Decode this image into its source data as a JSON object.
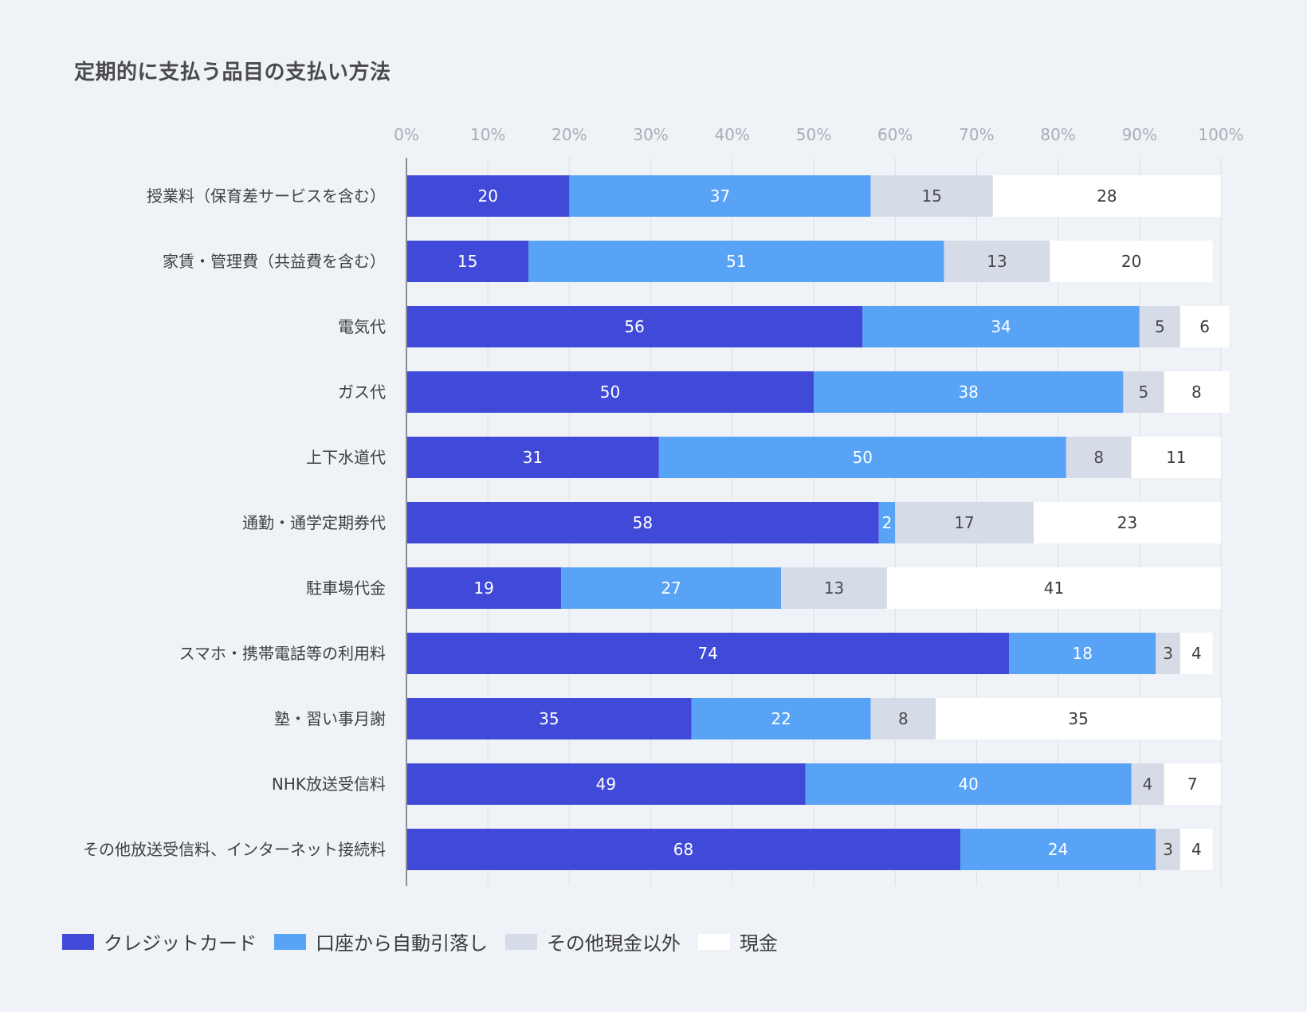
{
  "chart_data": {
    "type": "bar",
    "orientation": "horizontal",
    "stacked": true,
    "title": "定期的に支払う品目の支払い方法",
    "x_ticks": [
      "0%",
      "10%",
      "20%",
      "30%",
      "40%",
      "50%",
      "60%",
      "70%",
      "80%",
      "90%",
      "100%"
    ],
    "xlim": [
      0,
      100
    ],
    "grid": true,
    "legend_position": "bottom-left",
    "categories": [
      "授業料（保育差サービスを含む）",
      "家賃・管理費（共益費を含む）",
      "電気代",
      "ガス代",
      "上下水道代",
      "通勤・通学定期券代",
      "駐車場代金",
      "スマホ・携帯電話等の利用料",
      "塾・習い事月謝",
      "NHK放送受信料",
      "その他放送受信料、インターネット接続料"
    ],
    "series": [
      {
        "name": "クレジットカード",
        "color": "#4149d9",
        "label_color": "#ffffff",
        "values": [
          20,
          15,
          56,
          50,
          31,
          58,
          19,
          74,
          35,
          49,
          68
        ]
      },
      {
        "name": "口座から自動引落し",
        "color": "#58a3f5",
        "label_color": "#ffffff",
        "values": [
          37,
          51,
          34,
          38,
          50,
          2,
          27,
          18,
          22,
          40,
          24
        ]
      },
      {
        "name": "その他現金以外",
        "color": "#d6dbe8",
        "label_color": "#4a4a4a",
        "values": [
          15,
          13,
          5,
          5,
          8,
          17,
          13,
          3,
          8,
          4,
          3
        ]
      },
      {
        "name": "現金",
        "color": "#ffffff",
        "label_color": "#3a3a3a",
        "values": [
          28,
          20,
          6,
          8,
          11,
          23,
          41,
          4,
          35,
          7,
          4
        ]
      }
    ]
  }
}
